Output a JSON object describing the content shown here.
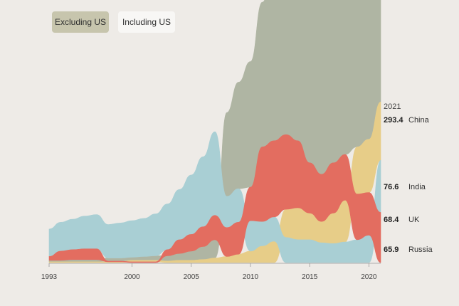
{
  "buttons": {
    "excluding": "Excluding US",
    "including": "Including US"
  },
  "chart_data": {
    "type": "area",
    "subtype": "rank-ordered streamgraph",
    "x": [
      1993,
      1994,
      1995,
      1996,
      1997,
      1998,
      1999,
      2000,
      2001,
      2002,
      2003,
      2004,
      2005,
      2006,
      2007,
      2008,
      2009,
      2010,
      2011,
      2012,
      2013,
      2014,
      2015,
      2016,
      2017,
      2018,
      2019,
      2020,
      2021
    ],
    "xticks": [
      1993,
      2000,
      2005,
      2010,
      2015,
      2020
    ],
    "series": [
      {
        "name": "China",
        "color": "#afb5a3",
        "values": [
          2,
          2,
          3,
          3,
          3,
          4,
          4,
          4,
          5,
          6,
          7,
          9,
          12,
          17,
          24,
          110,
          140,
          165,
          190,
          230,
          260,
          270,
          255,
          260,
          270,
          268,
          270,
          285,
          293.4
        ]
      },
      {
        "name": "India",
        "color": "#e7cd88",
        "values": [
          1,
          1,
          1,
          1,
          1,
          1,
          1,
          2,
          2,
          2,
          2,
          3,
          3,
          4,
          6,
          8,
          11,
          15,
          22,
          28,
          37,
          42,
          35,
          28,
          40,
          55,
          62,
          70,
          76.6
        ]
      },
      {
        "name": "UK",
        "color": "#a9cfd4",
        "values": [
          36,
          38,
          40,
          43,
          45,
          44,
          46,
          48,
          50,
          55,
          60,
          66,
          78,
          92,
          110,
          41,
          44,
          40,
          32,
          32,
          33,
          30,
          30,
          26,
          25,
          27,
          30,
          36,
          68.4
        ]
      },
      {
        "name": "Russia",
        "color": "#e36d60",
        "values": [
          5,
          12,
          13,
          14,
          14,
          1,
          1,
          1,
          1,
          1,
          8,
          18,
          22,
          26,
          32,
          38,
          42,
          44,
          98,
          100,
          98,
          88,
          66,
          62,
          66,
          60,
          60,
          56,
          65.9
        ]
      }
    ],
    "end_labels": {
      "year": "2021",
      "items": [
        {
          "value": "293.4",
          "name": "China"
        },
        {
          "value": "76.6",
          "name": "India"
        },
        {
          "value": "68.4",
          "name": "UK"
        },
        {
          "value": "65.9",
          "name": "Russia"
        }
      ]
    },
    "xlabel": "",
    "ylabel": "",
    "grid": false,
    "legend": "direct labels at right end"
  }
}
